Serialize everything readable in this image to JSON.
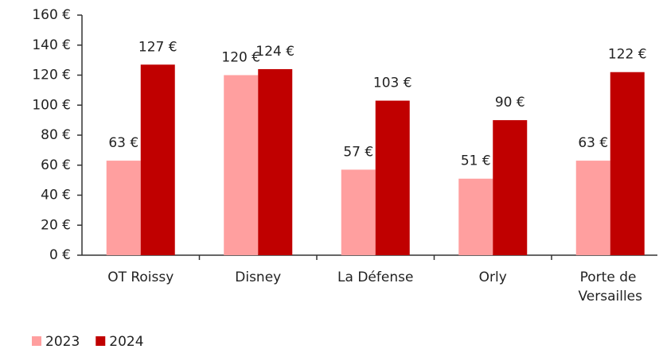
{
  "chart_data": {
    "type": "bar",
    "categories": [
      "OT Roissy",
      "Disney",
      "La Défense",
      "Orly",
      "Porte de Versailles"
    ],
    "series": [
      {
        "name": "2023",
        "color": "#ff9f9f",
        "values": [
          63,
          120,
          57,
          51,
          63
        ],
        "value_labels": [
          "63 €",
          "120 €",
          "57 €",
          "51 €",
          "63 €"
        ]
      },
      {
        "name": "2024",
        "color": "#c00000",
        "values": [
          127,
          124,
          103,
          90,
          122
        ],
        "value_labels": [
          "127 €",
          "124 €",
          "103 €",
          "90 €",
          "122 €"
        ]
      }
    ],
    "ylim": [
      0,
      160
    ],
    "yticks": [
      {
        "value": 0,
        "label": "0 €"
      },
      {
        "value": 20,
        "label": "20 €"
      },
      {
        "value": 40,
        "label": "40 €"
      },
      {
        "value": 60,
        "label": "60 €"
      },
      {
        "value": 80,
        "label": "80 €"
      },
      {
        "value": 100,
        "label": "100 €"
      },
      {
        "value": 120,
        "label": "120 €"
      },
      {
        "value": 140,
        "label": "140 €"
      },
      {
        "value": 160,
        "label": "160 €"
      }
    ],
    "legend": "bottom-left"
  }
}
